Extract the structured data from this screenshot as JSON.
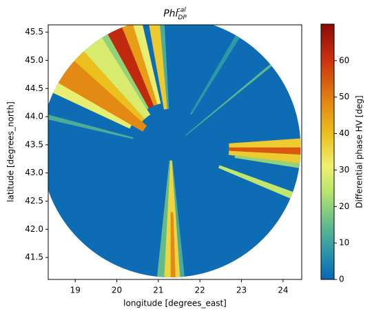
{
  "chart_data": {
    "type": "radar",
    "title": {
      "base": "Phi",
      "sub": "DP",
      "sup": "cal"
    },
    "x_label": "longitude [degrees_east]",
    "y_label": "latitude [degrees_north]",
    "colorbar_label": "Differential phase HV [deg]",
    "xlim": [
      18.35,
      24.45
    ],
    "ylim": [
      41.11,
      45.63
    ],
    "xticks": [
      19,
      20,
      21,
      22,
      23,
      24
    ],
    "yticks": [
      41.5,
      {
        "value": 42,
        "label": "42.0"
      },
      42.5,
      {
        "value": 43,
        "label": "43.0"
      },
      43.5,
      {
        "value": 44,
        "label": "44.0"
      },
      44.5,
      {
        "value": 45,
        "label": "45.0"
      },
      45.5
    ],
    "clim": [
      0,
      70
    ],
    "cticks": [
      0,
      10,
      20,
      30,
      40,
      50,
      60
    ],
    "colormap": [
      [
        0,
        "#0866b6"
      ],
      [
        8,
        "#2f98a6"
      ],
      [
        15,
        "#63bb8c"
      ],
      [
        24,
        "#b8e46c"
      ],
      [
        31,
        "#f0f070"
      ],
      [
        40,
        "#ebbf1e"
      ],
      [
        50,
        "#e07d12"
      ],
      [
        60,
        "#cc3210"
      ],
      [
        70,
        "#8c0a08"
      ]
    ],
    "center": [
      21.3,
      43.45
    ],
    "radius": [
      3.12,
      2.3
    ],
    "sectors": [
      {
        "az": [
          0,
          360
        ],
        "r": [
          0,
          1
        ],
        "value": 1
      },
      {
        "az": [
          30,
          32
        ],
        "r": [
          0.3,
          1
        ],
        "value": 8
      },
      {
        "az": [
          50,
          51
        ],
        "r": [
          0.15,
          1
        ],
        "value": 14
      },
      {
        "az": [
          86,
          97
        ],
        "r": [
          0.45,
          1
        ],
        "value": 38
      },
      {
        "az": [
          90,
          93
        ],
        "r": [
          0.45,
          1
        ],
        "value": 55
      },
      {
        "az": [
          97,
          99
        ],
        "r": [
          0.5,
          1
        ],
        "value": 20
      },
      {
        "az": [
          110,
          113
        ],
        "r": [
          0.4,
          1
        ],
        "value": 25
      },
      {
        "az": [
          174,
          176
        ],
        "r": [
          0.1,
          1
        ],
        "value": 12
      },
      {
        "az": [
          176,
          183
        ],
        "r": [
          0.1,
          1
        ],
        "value": 36
      },
      {
        "az": [
          178,
          180
        ],
        "r": [
          0.5,
          1
        ],
        "value": 48
      },
      {
        "az": [
          183,
          186
        ],
        "r": [
          0.1,
          1
        ],
        "value": 15
      },
      {
        "az": [
          283,
          285
        ],
        "r": [
          0.3,
          1
        ],
        "value": 12
      },
      {
        "az": [
          295,
          300
        ],
        "r": [
          0.35,
          1
        ],
        "value": 30
      },
      {
        "az": [
          300,
          312
        ],
        "r": [
          0.25,
          1
        ],
        "value": 48
      },
      {
        "az": [
          312,
          318
        ],
        "r": [
          0.3,
          1
        ],
        "value": 40
      },
      {
        "az": [
          318,
          328
        ],
        "r": [
          0.3,
          1
        ],
        "value": 28
      },
      {
        "az": [
          328,
          331
        ],
        "r": [
          0.35,
          1
        ],
        "value": 20
      },
      {
        "az": [
          331,
          338
        ],
        "r": [
          0.35,
          1
        ],
        "value": 62
      },
      {
        "az": [
          338,
          343
        ],
        "r": [
          0.35,
          1
        ],
        "value": 45
      },
      {
        "az": [
          343,
          347
        ],
        "r": [
          0.35,
          1
        ],
        "value": 30
      },
      {
        "az": [
          350,
          355
        ],
        "r": [
          0.3,
          1
        ],
        "value": 38
      },
      {
        "az": [
          355,
          357
        ],
        "r": [
          0.3,
          1
        ],
        "value": 12
      }
    ]
  }
}
